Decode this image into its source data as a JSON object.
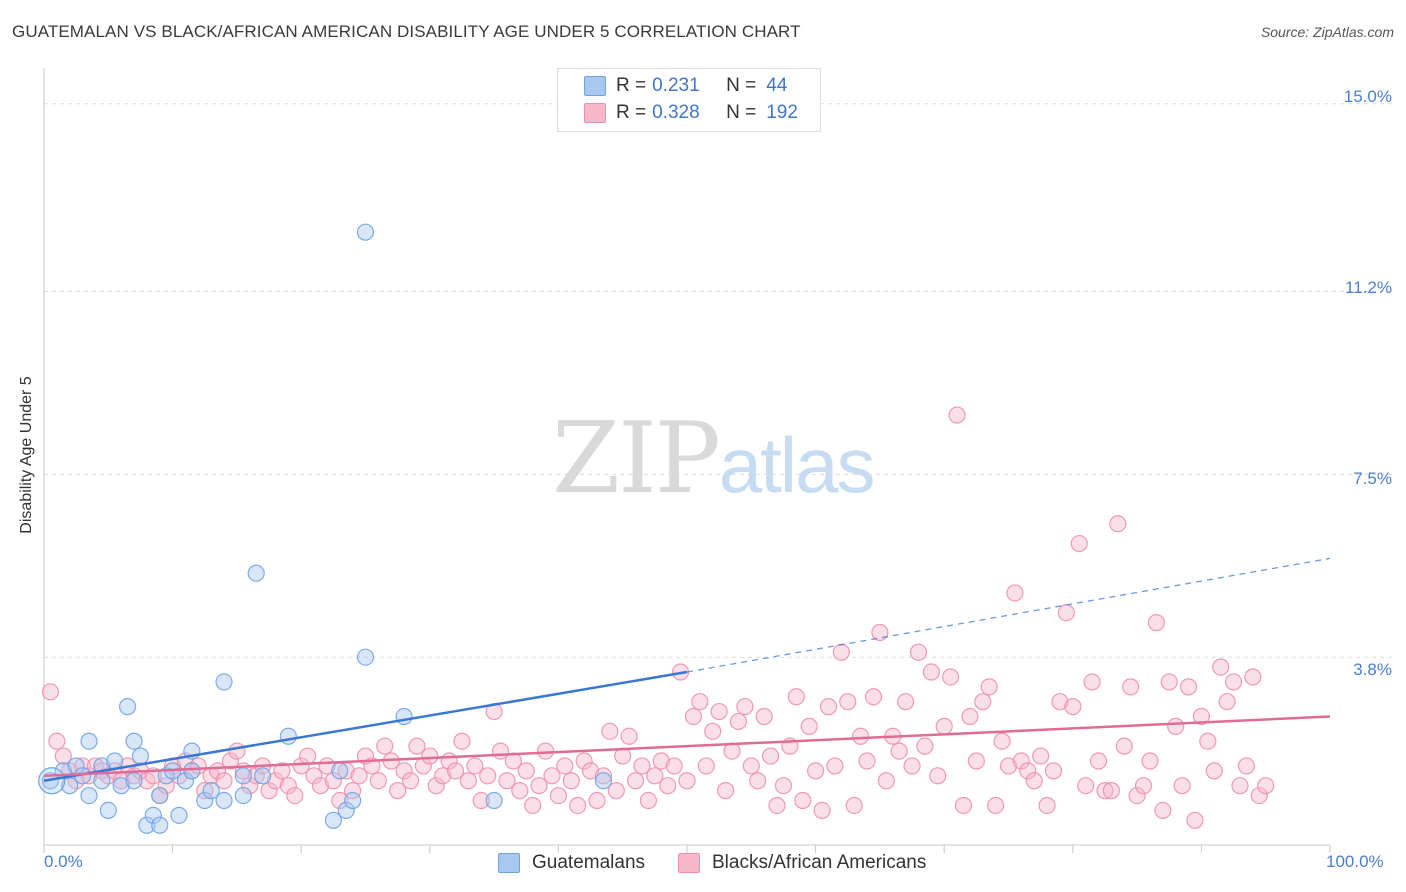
{
  "header": {
    "title": "GUATEMALAN VS BLACK/AFRICAN AMERICAN DISABILITY AGE UNDER 5 CORRELATION CHART",
    "source": "Source: ZipAtlas.com"
  },
  "watermark": {
    "zip": "ZIP",
    "atlas": "atlas"
  },
  "legend": {
    "rows": [
      {
        "r_label": "R =",
        "r_value": "0.231",
        "n_label": "N =",
        "n_value": "44",
        "color": "#a9c8ef"
      },
      {
        "r_label": "R =",
        "r_value": "0.328",
        "n_label": "N =",
        "n_value": "192",
        "color": "#f5b9cb"
      }
    ]
  },
  "bottom_legend": {
    "items": [
      {
        "label": "Guatemalans",
        "color": "#a9c8ef"
      },
      {
        "label": "Blacks/African Americans",
        "color": "#f5b9cb"
      }
    ]
  },
  "chart_data": {
    "type": "scatter",
    "title": "GUATEMALAN VS BLACK/AFRICAN AMERICAN DISABILITY AGE UNDER 5 CORRELATION CHART",
    "xlabel": "",
    "ylabel": "Disability Age Under 5",
    "xlim": [
      0,
      100
    ],
    "ylim": [
      0,
      15.5
    ],
    "x_tick_labels": [
      "0.0%",
      "100.0%"
    ],
    "y_ticks": [
      3.8,
      7.5,
      11.2,
      15.0
    ],
    "y_tick_labels": [
      "3.8%",
      "7.5%",
      "11.2%",
      "15.0%"
    ],
    "grid": true,
    "legend_position": "top-center",
    "series": [
      {
        "name": "Guatemalans",
        "color": "#6fa3e4",
        "fill": "#a9c8ef",
        "r": 0.231,
        "n": 44,
        "trend": {
          "x0": 0,
          "y0": 1.3,
          "x1": 50,
          "y1": 3.5,
          "dashed_to": 100,
          "dashed_y": 5.8
        },
        "points": [
          [
            0.5,
            1.3
          ],
          [
            1.5,
            1.5
          ],
          [
            2.0,
            1.2
          ],
          [
            2.5,
            1.6
          ],
          [
            3.0,
            1.4
          ],
          [
            3.5,
            1.0
          ],
          [
            3.5,
            2.1
          ],
          [
            4.5,
            1.6
          ],
          [
            4.5,
            1.3
          ],
          [
            5.0,
            0.7
          ],
          [
            5.5,
            1.7
          ],
          [
            6.0,
            1.2
          ],
          [
            6.5,
            2.8
          ],
          [
            7.0,
            1.3
          ],
          [
            7.0,
            2.1
          ],
          [
            7.5,
            1.8
          ],
          [
            8.0,
            0.4
          ],
          [
            8.5,
            0.6
          ],
          [
            9.0,
            0.4
          ],
          [
            9.0,
            1.0
          ],
          [
            9.5,
            1.4
          ],
          [
            10.0,
            1.5
          ],
          [
            10.5,
            0.6
          ],
          [
            11.0,
            1.3
          ],
          [
            11.5,
            1.5
          ],
          [
            11.5,
            1.9
          ],
          [
            12.5,
            0.9
          ],
          [
            13.0,
            1.1
          ],
          [
            14.0,
            0.9
          ],
          [
            14.0,
            3.3
          ],
          [
            15.5,
            1.0
          ],
          [
            15.5,
            1.4
          ],
          [
            16.5,
            5.5
          ],
          [
            17.0,
            1.4
          ],
          [
            19.0,
            2.2
          ],
          [
            22.5,
            0.5
          ],
          [
            23.0,
            1.5
          ],
          [
            23.5,
            0.7
          ],
          [
            24.0,
            0.9
          ],
          [
            25.0,
            12.4
          ],
          [
            25.0,
            3.8
          ],
          [
            28.0,
            2.6
          ],
          [
            35.0,
            0.9
          ],
          [
            43.5,
            1.3
          ]
        ]
      },
      {
        "name": "Blacks/African Americans",
        "color": "#ef8fac",
        "fill": "#f5b9cb",
        "r": 0.328,
        "n": 192,
        "trend": {
          "x0": 0,
          "y0": 1.4,
          "x1": 100,
          "y1": 2.6
        },
        "points": [
          [
            0.5,
            3.1
          ],
          [
            1.0,
            2.1
          ],
          [
            1.5,
            1.8
          ],
          [
            2.0,
            1.5
          ],
          [
            2.5,
            1.3
          ],
          [
            3.0,
            1.6
          ],
          [
            3.5,
            1.4
          ],
          [
            4.0,
            1.6
          ],
          [
            4.5,
            1.5
          ],
          [
            5.0,
            1.4
          ],
          [
            5.5,
            1.5
          ],
          [
            6.0,
            1.3
          ],
          [
            6.5,
            1.6
          ],
          [
            7.0,
            1.4
          ],
          [
            7.5,
            1.5
          ],
          [
            8.0,
            1.3
          ],
          [
            8.5,
            1.4
          ],
          [
            9.0,
            1.0
          ],
          [
            9.5,
            1.2
          ],
          [
            10.0,
            1.6
          ],
          [
            10.5,
            1.4
          ],
          [
            11.0,
            1.7
          ],
          [
            11.5,
            1.5
          ],
          [
            12.0,
            1.6
          ],
          [
            12.5,
            1.1
          ],
          [
            13.0,
            1.4
          ],
          [
            13.5,
            1.5
          ],
          [
            14.0,
            1.3
          ],
          [
            14.5,
            1.7
          ],
          [
            15.0,
            1.9
          ],
          [
            15.5,
            1.5
          ],
          [
            16.0,
            1.2
          ],
          [
            16.5,
            1.4
          ],
          [
            17.0,
            1.6
          ],
          [
            17.5,
            1.1
          ],
          [
            18.0,
            1.3
          ],
          [
            18.5,
            1.5
          ],
          [
            19.0,
            1.2
          ],
          [
            19.5,
            1.0
          ],
          [
            20.0,
            1.6
          ],
          [
            20.5,
            1.8
          ],
          [
            21.0,
            1.4
          ],
          [
            21.5,
            1.2
          ],
          [
            22.0,
            1.6
          ],
          [
            22.5,
            1.3
          ],
          [
            23.0,
            0.9
          ],
          [
            23.5,
            1.5
          ],
          [
            24.0,
            1.1
          ],
          [
            24.5,
            1.4
          ],
          [
            25.0,
            1.8
          ],
          [
            25.5,
            1.6
          ],
          [
            26.0,
            1.3
          ],
          [
            26.5,
            2.0
          ],
          [
            27.0,
            1.7
          ],
          [
            27.5,
            1.1
          ],
          [
            28.0,
            1.5
          ],
          [
            28.5,
            1.3
          ],
          [
            29.0,
            2.0
          ],
          [
            29.5,
            1.6
          ],
          [
            30.0,
            1.8
          ],
          [
            30.5,
            1.2
          ],
          [
            31.0,
            1.4
          ],
          [
            31.5,
            1.7
          ],
          [
            32.0,
            1.5
          ],
          [
            32.5,
            2.1
          ],
          [
            33.0,
            1.3
          ],
          [
            33.5,
            1.6
          ],
          [
            34.0,
            0.9
          ],
          [
            34.5,
            1.4
          ],
          [
            35.0,
            2.7
          ],
          [
            35.5,
            1.9
          ],
          [
            36.0,
            1.3
          ],
          [
            36.5,
            1.7
          ],
          [
            37.0,
            1.1
          ],
          [
            37.5,
            1.5
          ],
          [
            38.0,
            0.8
          ],
          [
            38.5,
            1.2
          ],
          [
            39.0,
            1.9
          ],
          [
            39.5,
            1.4
          ],
          [
            40.0,
            1.0
          ],
          [
            40.5,
            1.6
          ],
          [
            41.0,
            1.3
          ],
          [
            41.5,
            0.8
          ],
          [
            42.0,
            1.7
          ],
          [
            42.5,
            1.5
          ],
          [
            43.0,
            0.9
          ],
          [
            43.5,
            1.4
          ],
          [
            44.0,
            2.3
          ],
          [
            44.5,
            1.1
          ],
          [
            45.0,
            1.8
          ],
          [
            45.5,
            2.2
          ],
          [
            46.0,
            1.3
          ],
          [
            46.5,
            1.6
          ],
          [
            47.0,
            0.9
          ],
          [
            47.5,
            1.4
          ],
          [
            48.0,
            1.7
          ],
          [
            48.5,
            1.2
          ],
          [
            49.0,
            1.6
          ],
          [
            49.5,
            3.5
          ],
          [
            50.0,
            1.3
          ],
          [
            50.5,
            2.6
          ],
          [
            51.0,
            2.9
          ],
          [
            51.5,
            1.6
          ],
          [
            52.0,
            2.3
          ],
          [
            52.5,
            2.7
          ],
          [
            53.0,
            1.1
          ],
          [
            53.5,
            1.9
          ],
          [
            54.0,
            2.5
          ],
          [
            54.5,
            2.8
          ],
          [
            55.0,
            1.6
          ],
          [
            55.5,
            1.3
          ],
          [
            56.0,
            2.6
          ],
          [
            56.5,
            1.8
          ],
          [
            57.0,
            0.8
          ],
          [
            57.5,
            1.2
          ],
          [
            58.0,
            2.0
          ],
          [
            58.5,
            3.0
          ],
          [
            59.0,
            0.9
          ],
          [
            59.5,
            2.4
          ],
          [
            60.0,
            1.5
          ],
          [
            60.5,
            0.7
          ],
          [
            61.0,
            2.8
          ],
          [
            61.5,
            1.6
          ],
          [
            62.0,
            3.9
          ],
          [
            62.5,
            2.9
          ],
          [
            63.0,
            0.8
          ],
          [
            63.5,
            2.2
          ],
          [
            64.0,
            1.7
          ],
          [
            64.5,
            3.0
          ],
          [
            65.0,
            4.3
          ],
          [
            65.5,
            1.3
          ],
          [
            66.0,
            2.2
          ],
          [
            66.5,
            1.9
          ],
          [
            67.0,
            2.9
          ],
          [
            67.5,
            1.6
          ],
          [
            68.0,
            3.9
          ],
          [
            68.5,
            2.0
          ],
          [
            69.0,
            3.5
          ],
          [
            69.5,
            1.4
          ],
          [
            70.0,
            2.4
          ],
          [
            70.5,
            3.4
          ],
          [
            71.0,
            8.7
          ],
          [
            71.5,
            0.8
          ],
          [
            72.0,
            2.6
          ],
          [
            72.5,
            1.7
          ],
          [
            73.0,
            2.9
          ],
          [
            73.5,
            3.2
          ],
          [
            74.0,
            0.8
          ],
          [
            74.5,
            2.1
          ],
          [
            75.0,
            1.6
          ],
          [
            75.5,
            5.1
          ],
          [
            76.0,
            1.7
          ],
          [
            76.5,
            1.5
          ],
          [
            77.0,
            1.3
          ],
          [
            77.5,
            1.8
          ],
          [
            78.0,
            0.8
          ],
          [
            78.5,
            1.5
          ],
          [
            79.0,
            2.9
          ],
          [
            79.5,
            4.7
          ],
          [
            80.0,
            2.8
          ],
          [
            80.5,
            6.1
          ],
          [
            81.0,
            1.2
          ],
          [
            81.5,
            3.3
          ],
          [
            82.0,
            1.7
          ],
          [
            82.5,
            1.1
          ],
          [
            83.0,
            1.1
          ],
          [
            83.5,
            6.5
          ],
          [
            84.0,
            2.0
          ],
          [
            84.5,
            3.2
          ],
          [
            85.0,
            1.0
          ],
          [
            85.5,
            1.2
          ],
          [
            86.0,
            1.7
          ],
          [
            86.5,
            4.5
          ],
          [
            87.0,
            0.7
          ],
          [
            87.5,
            3.3
          ],
          [
            88.0,
            2.4
          ],
          [
            88.5,
            1.2
          ],
          [
            89.0,
            3.2
          ],
          [
            89.5,
            0.5
          ],
          [
            90.0,
            2.6
          ],
          [
            90.5,
            2.1
          ],
          [
            91.0,
            1.5
          ],
          [
            91.5,
            3.6
          ],
          [
            92.0,
            2.9
          ],
          [
            92.5,
            3.3
          ],
          [
            93.0,
            1.2
          ],
          [
            93.5,
            1.6
          ],
          [
            94.0,
            3.4
          ],
          [
            94.5,
            1.0
          ],
          [
            95.0,
            1.2
          ]
        ]
      }
    ]
  }
}
